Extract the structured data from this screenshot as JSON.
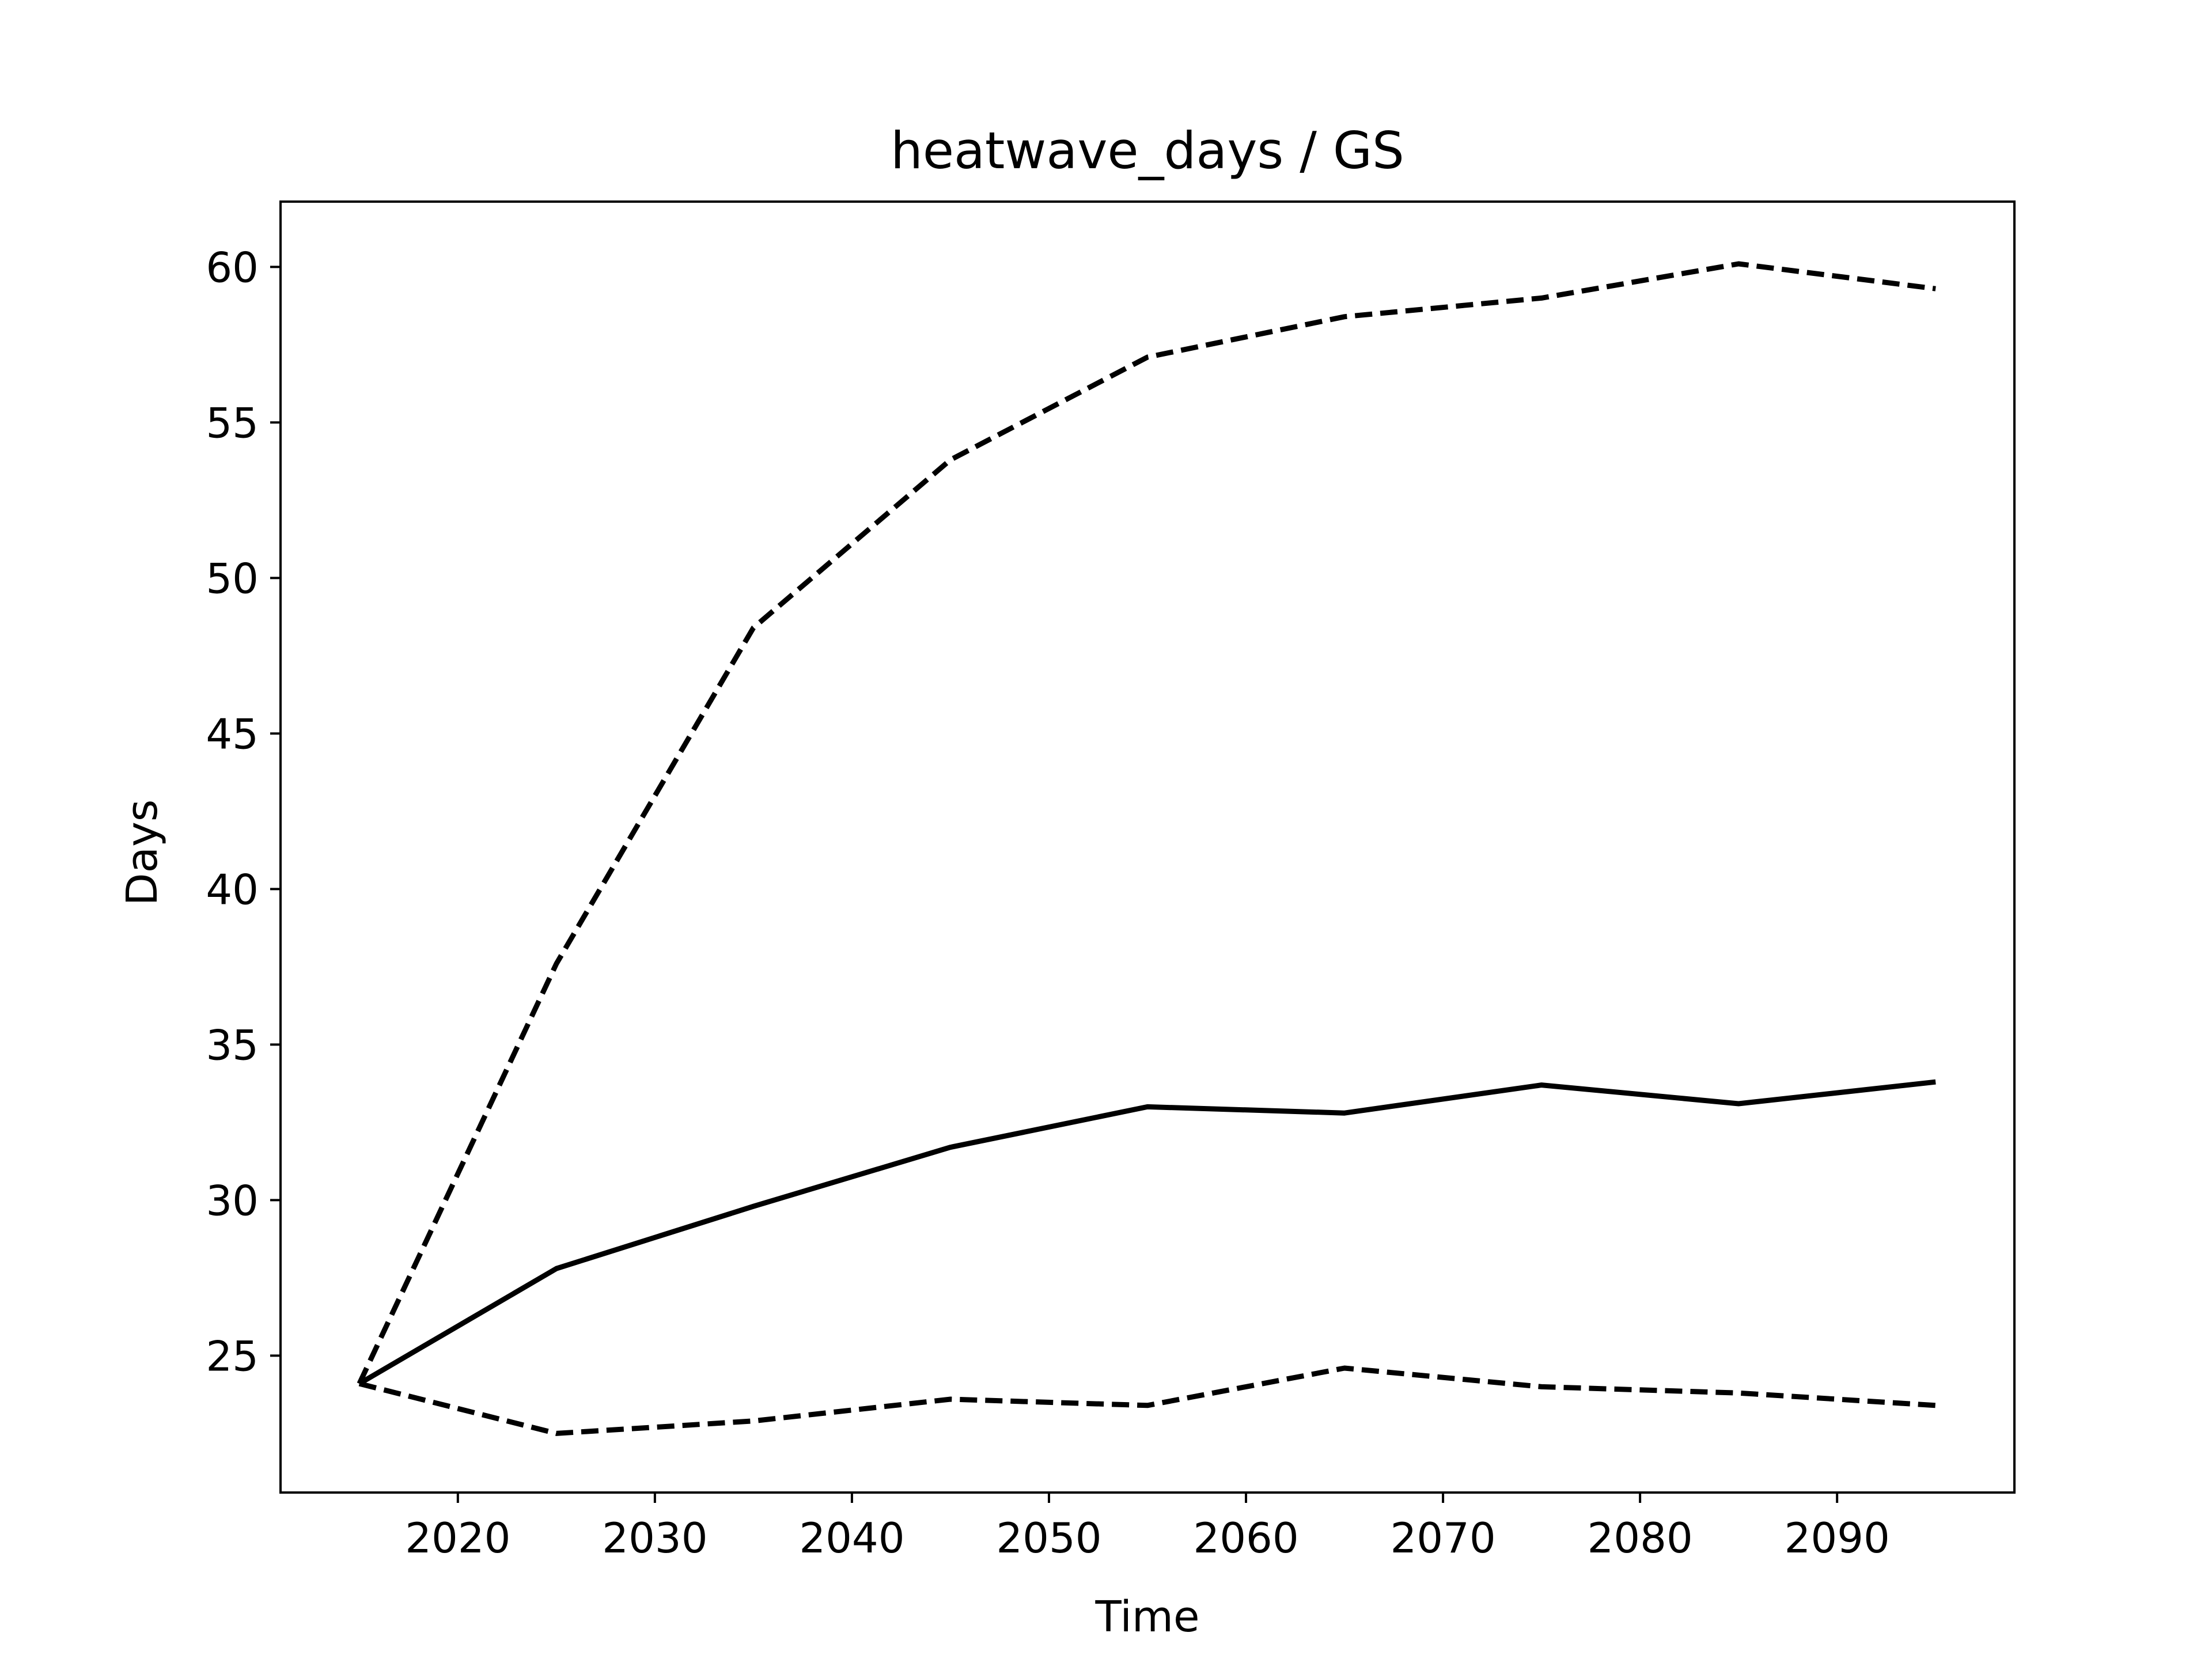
{
  "chart_data": {
    "type": "line",
    "title": "heatwave_days / GS",
    "xlabel": "Time",
    "ylabel": "Days",
    "xlim": [
      2011,
      2099
    ],
    "ylim": [
      20.6,
      62.1
    ],
    "x_ticks": [
      2020,
      2030,
      2040,
      2050,
      2060,
      2070,
      2080,
      2090
    ],
    "y_ticks": [
      25,
      30,
      35,
      40,
      45,
      50,
      55,
      60
    ],
    "x_tick_labels": [
      "2020",
      "2030",
      "2040",
      "2050",
      "2060",
      "2070",
      "2080",
      "2090"
    ],
    "y_tick_labels": [
      "25",
      "30",
      "35",
      "40",
      "45",
      "50",
      "55",
      "60"
    ],
    "grid": false,
    "legend": "none",
    "x": [
      2015,
      2025,
      2035,
      2045,
      2055,
      2065,
      2075,
      2085,
      2095
    ],
    "series": [
      {
        "style": "solid",
        "color": "#000000",
        "values": [
          24.1,
          27.8,
          29.8,
          31.7,
          33.0,
          32.8,
          33.7,
          33.1,
          33.8
        ]
      },
      {
        "style": "dashed",
        "color": "#000000",
        "values": [
          24.1,
          37.6,
          48.4,
          53.8,
          57.1,
          58.4,
          59.0,
          60.1,
          59.3
        ]
      },
      {
        "style": "dashed",
        "color": "#000000",
        "values": [
          24.1,
          22.5,
          22.9,
          23.6,
          23.4,
          24.6,
          24.0,
          23.8,
          23.4
        ]
      }
    ]
  }
}
